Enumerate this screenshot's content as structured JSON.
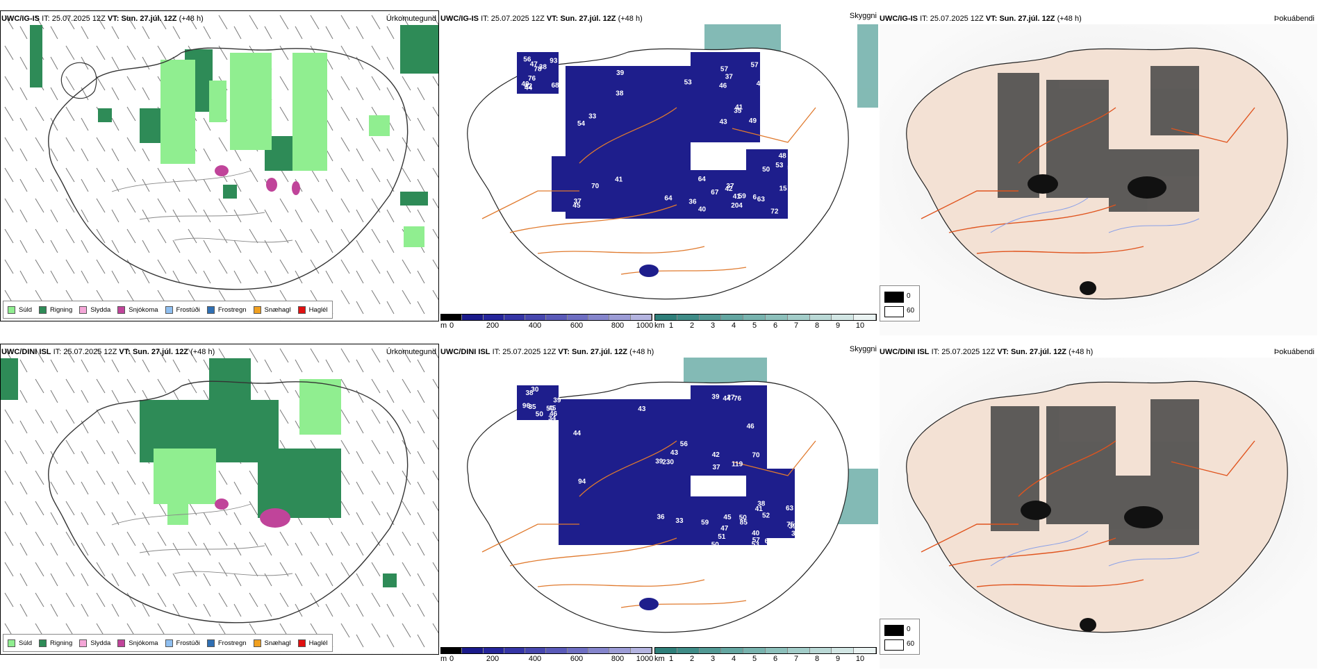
{
  "rows": [
    {
      "model": "UWC/IG-IS",
      "it_label": "IT:",
      "it": "25.07.2025 12Z",
      "vt_label": "VT:",
      "vt": "Sun. 27.júl. 12Z",
      "lead": "(+48 h)",
      "labels": [
        "68",
        "54",
        "57",
        "67",
        "53",
        "42",
        "38",
        "37",
        "36",
        "50",
        "40",
        "70",
        "57",
        "37",
        "15",
        "56",
        "39",
        "43",
        "41",
        "53",
        "78",
        "41",
        "46",
        "64",
        "48",
        "76",
        "64",
        "49",
        "59",
        "72",
        "47",
        "33",
        "35",
        "40",
        "63",
        "38",
        "37",
        "43",
        "42",
        "6",
        "93",
        "53",
        "41",
        "204",
        "63",
        "44",
        "45"
      ]
    },
    {
      "model": "UWC/DINI ISL",
      "it_label": "IT:",
      "it": "25.07.2025 12Z",
      "vt_label": "VT:",
      "vt": "Sun. 27.júl. 12Z",
      "lead": "(+48 h)",
      "labels": [
        "46",
        "56",
        "70",
        "45",
        "57",
        "30",
        "43",
        "42",
        "41",
        "38",
        "39",
        "44",
        "46",
        "50",
        "40",
        "38",
        "33",
        "39",
        "51",
        "63",
        "96",
        "94",
        "119",
        "85",
        "62",
        "50",
        "43",
        "76",
        "50",
        "39",
        "35",
        "36",
        "37",
        "47",
        "75",
        "34",
        "39",
        "44",
        "53",
        "52",
        "45",
        "230",
        "27",
        "59",
        "39",
        "50"
      ]
    }
  ],
  "panel_titles": [
    "Úrkomutegund",
    "Skyggni",
    "Þokuábendi"
  ],
  "precip_legend": [
    {
      "label": "Súld",
      "color": "#90ee90"
    },
    {
      "label": "Rigning",
      "color": "#2e8b57"
    },
    {
      "label": "Slydda",
      "color": "#f4a6d7"
    },
    {
      "label": "Snjókoma",
      "color": "#c0449a"
    },
    {
      "label": "Frostúði",
      "color": "#8fbff0"
    },
    {
      "label": "Frostregn",
      "color": "#2f6fb3"
    },
    {
      "label": "Snæhagl",
      "color": "#f0a020"
    },
    {
      "label": "Haglél",
      "color": "#e01010"
    }
  ],
  "cbar_m": {
    "unit": "m",
    "ticks": [
      "0",
      "200",
      "400",
      "600",
      "800",
      "1000"
    ],
    "colors": [
      "#000000",
      "#1a1a8a",
      "#25259a",
      "#3535a5",
      "#4747ae",
      "#5a5ab8",
      "#6e6ec2",
      "#8585cc",
      "#9c9cd6",
      "#b4b4e0"
    ]
  },
  "cbar_km": {
    "unit": "km",
    "ticks": [
      "1",
      "2",
      "3",
      "4",
      "5",
      "6",
      "7",
      "8",
      "9",
      "10"
    ],
    "colors": [
      "#2f7f7a",
      "#3f8c87",
      "#519994",
      "#64a6a1",
      "#78b3ae",
      "#8dc0bb",
      "#a3cdc9",
      "#bad9d6",
      "#d2e6e4",
      "#eaf3f2"
    ]
  },
  "fog_legend": {
    "black": "0",
    "white": "60"
  }
}
